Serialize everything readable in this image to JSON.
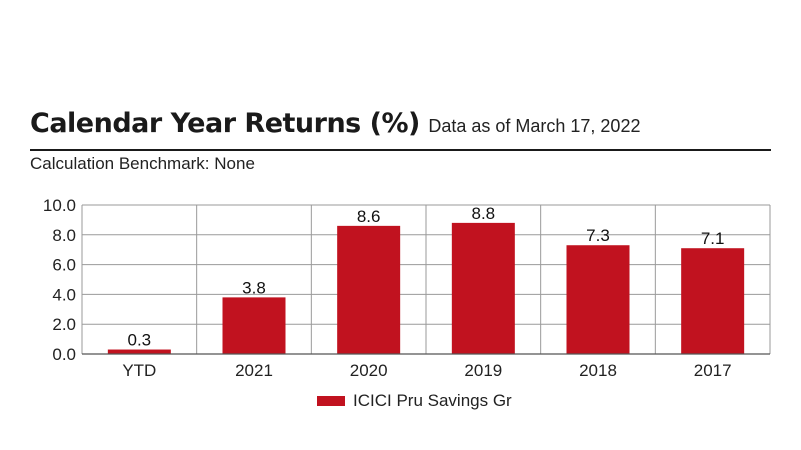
{
  "header": {
    "title": "Calendar Year Returns (%)",
    "subtitle": "Data as of March 17, 2022",
    "benchmark": "Calculation Benchmark: None"
  },
  "chart_data": {
    "type": "bar",
    "title": "Calendar Year Returns (%)",
    "categories": [
      "YTD",
      "2021",
      "2020",
      "2019",
      "2018",
      "2017"
    ],
    "series": [
      {
        "name": "ICICI Pru Savings Gr",
        "values": [
          0.3,
          3.8,
          8.6,
          8.8,
          7.3,
          7.1
        ],
        "color": "#c1121f"
      }
    ],
    "data_labels": [
      "0.3",
      "3.8",
      "8.6",
      "8.8",
      "7.3",
      "7.1"
    ],
    "y_ticks": [
      "0.0",
      "2.0",
      "4.0",
      "6.0",
      "8.0",
      "10.0"
    ],
    "ylim": [
      0,
      10
    ],
    "grid": true,
    "legend_position": "bottom"
  }
}
